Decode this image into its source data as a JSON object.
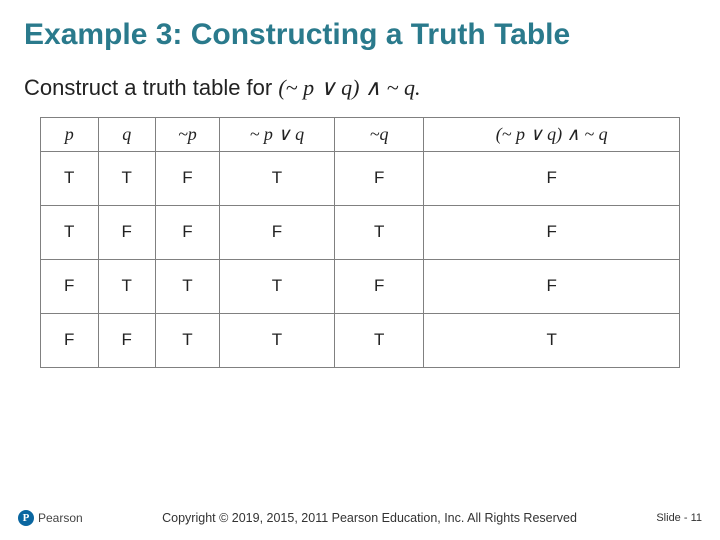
{
  "title": "Example 3: Constructing a Truth Table",
  "instruction_prefix": "Construct a truth table for ",
  "instruction_formula": "(~ p ∨ q) ∧ ~ q.",
  "table": {
    "columns": [
      "p",
      "q",
      "~p",
      "~ p ∨ q",
      "~q",
      "(~ p ∨ q) ∧ ~ q"
    ],
    "rows": [
      [
        "T",
        "T",
        "F",
        "T",
        "F",
        "F"
      ],
      [
        "T",
        "F",
        "F",
        "F",
        "T",
        "F"
      ],
      [
        "F",
        "T",
        "T",
        "T",
        "F",
        "F"
      ],
      [
        "F",
        "F",
        "T",
        "T",
        "T",
        "T"
      ]
    ]
  },
  "logo_letter": "P",
  "logo_name": "Pearson",
  "copyright": "Copyright © 2019, 2015, 2011 Pearson Education, Inc. All Rights Reserved",
  "slide_label": "Slide - 11",
  "colors": {
    "title": "#2a7a8c",
    "border": "#808080",
    "logo_bg": "#0a66a0"
  }
}
